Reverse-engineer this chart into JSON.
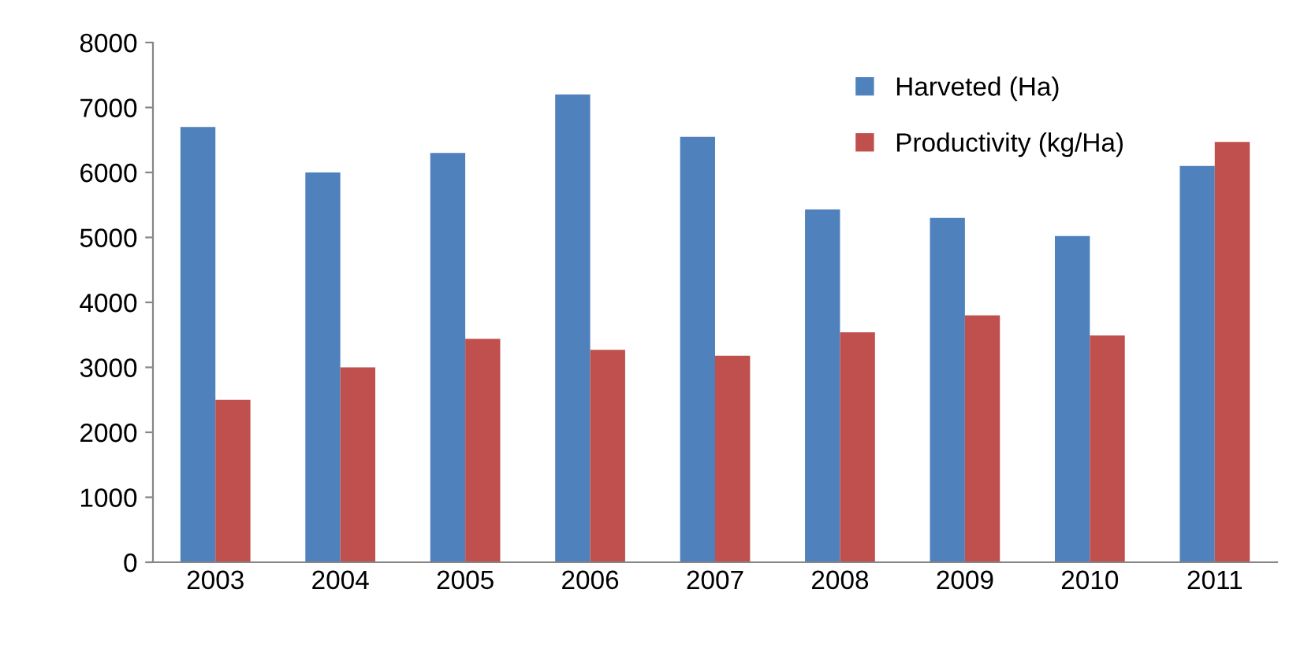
{
  "chart_data": {
    "type": "bar",
    "categories": [
      "2003",
      "2004",
      "2005",
      "2006",
      "2007",
      "2008",
      "2009",
      "2010",
      "2011"
    ],
    "series": [
      {
        "name": "Harveted (Ha)",
        "color": "#4f81bd",
        "values": [
          6700,
          6000,
          6300,
          7200,
          6550,
          5430,
          5300,
          5020,
          6100
        ]
      },
      {
        "name": "Productivity (kg/Ha)",
        "color": "#c0504d",
        "values": [
          2500,
          3000,
          3440,
          3270,
          3180,
          3540,
          3800,
          3490,
          6470
        ]
      }
    ],
    "ylim": [
      0,
      8000
    ],
    "yticks": [
      0,
      1000,
      2000,
      3000,
      4000,
      5000,
      6000,
      7000,
      8000
    ],
    "grid": false,
    "legend": "top right"
  }
}
